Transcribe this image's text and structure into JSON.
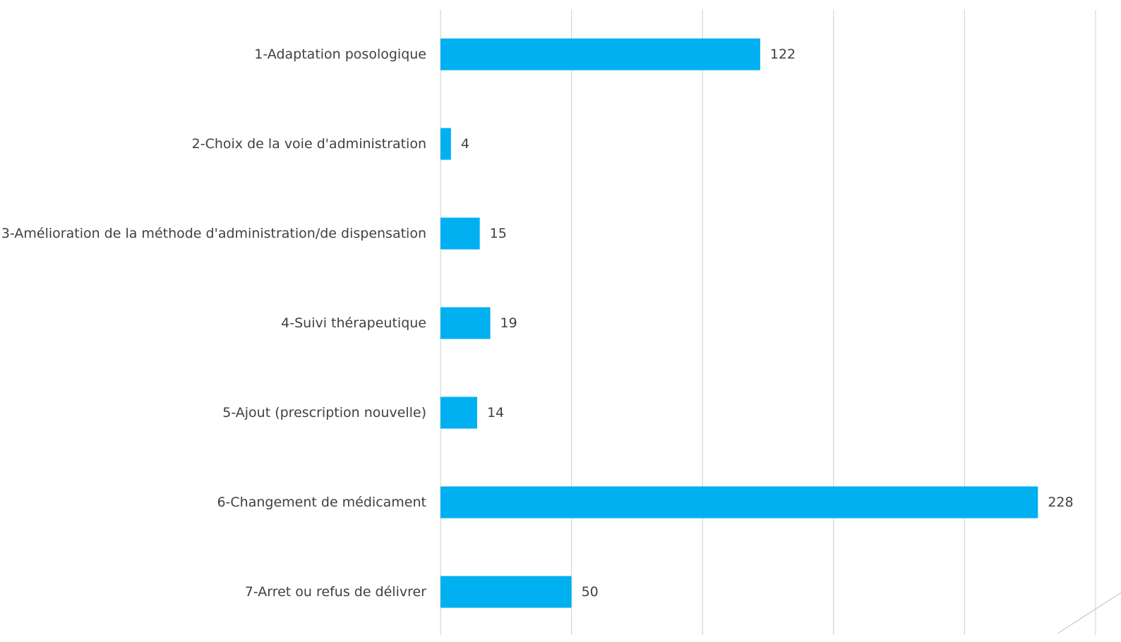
{
  "chart_data": {
    "type": "bar",
    "orientation": "horizontal",
    "categories": [
      "1-Adaptation posologique",
      "2-Choix de la voie d'administration",
      "3-Amélioration de la méthode d'administration/de dispensation",
      "4-Suivi thérapeutique",
      "5-Ajout (prescription nouvelle)",
      "6-Changement de médicament",
      "7-Arret ou refus de délivrer"
    ],
    "values": [
      122,
      4,
      15,
      19,
      14,
      228,
      50
    ],
    "data_labels": [
      "122",
      "4",
      "15",
      "19",
      "14",
      "228",
      "50"
    ],
    "title": "",
    "xlabel": "",
    "ylabel": "",
    "xlim": [
      0,
      250
    ],
    "grid": true,
    "gridline_step": 50,
    "tick_labels_visible": false,
    "legend": "none"
  },
  "colors": {
    "bar": "#00B0F0",
    "gridline": "#D9D9D9",
    "text": "#404040",
    "decor_line": "#BFBFBF"
  }
}
